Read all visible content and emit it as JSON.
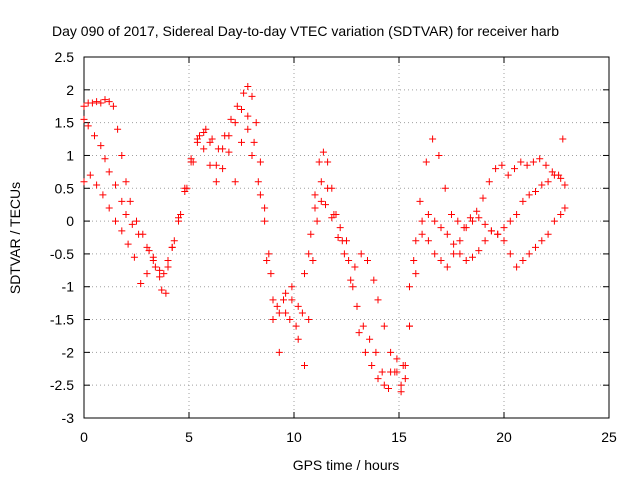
{
  "chart_data": {
    "type": "scatter",
    "title": "Day 090 of 2017, Sidereal Day-to-day VTEC variation (SDTVAR) for receiver harb",
    "xlabel": "GPS time / hours",
    "ylabel": "SDTVAR / TECUs",
    "xlim": [
      0,
      25
    ],
    "ylim": [
      -3,
      2.5
    ],
    "xticks": [
      "0",
      "5",
      "10",
      "15",
      "20",
      "25"
    ],
    "yticks": [
      "-3",
      "-2.5",
      "-2",
      "-1.5",
      "-1",
      "-0.5",
      "0",
      "0.5",
      "1",
      "1.5",
      "2",
      "2.5"
    ],
    "grid": true,
    "marker": "+",
    "color": "#ff0000",
    "series": [
      {
        "x": [
          0.0,
          0.2,
          0.5,
          0.8,
          1.0,
          1.2,
          1.5,
          1.8,
          2.0,
          2.3,
          2.6,
          3.0,
          3.3,
          3.6,
          3.8,
          4.0,
          4.3,
          4.6,
          4.9,
          5.2,
          5.5,
          5.8,
          6.1,
          6.4,
          6.7,
          7.0,
          7.3,
          7.6,
          7.8,
          8.0,
          8.2,
          8.4,
          8.6,
          8.8,
          9.0,
          9.3,
          9.6,
          9.9,
          10.2,
          10.5,
          10.8,
          11.0,
          11.2,
          11.4,
          11.6,
          11.8,
          12.0,
          12.3,
          12.6,
          12.9,
          13.2,
          13.5,
          13.8,
          14.0,
          14.3,
          14.6,
          14.9,
          15.1,
          15.3,
          15.5,
          15.7,
          16.0,
          16.3,
          16.6,
          16.9,
          17.2,
          17.5,
          17.8,
          18.1,
          18.4,
          18.7,
          19.0,
          19.3,
          19.6,
          19.9,
          20.2,
          20.5,
          20.8,
          21.1,
          21.4,
          21.7,
          22.0,
          22.3,
          22.6,
          22.8
        ],
        "y": [
          1.55,
          1.45,
          1.3,
          1.15,
          0.95,
          0.75,
          0.55,
          0.3,
          0.1,
          -0.05,
          -0.2,
          -0.4,
          -0.6,
          -0.75,
          -0.8,
          -0.6,
          -0.3,
          0.1,
          0.5,
          0.9,
          1.3,
          1.4,
          1.25,
          1.1,
          1.3,
          1.55,
          1.75,
          1.95,
          2.05,
          1.9,
          1.5,
          0.9,
          0.2,
          -0.5,
          -1.2,
          -1.4,
          -1.1,
          -1.2,
          -1.3,
          -0.8,
          -0.2,
          0.4,
          0.9,
          1.05,
          0.9,
          0.5,
          0.1,
          -0.3,
          -0.6,
          -0.7,
          -0.5,
          -0.6,
          -0.9,
          -1.2,
          -1.6,
          -2.0,
          -2.3,
          -2.5,
          -2.4,
          -1.6,
          -0.6,
          0.3,
          0.9,
          1.25,
          1.0,
          0.5,
          0.1,
          0.0,
          -0.1,
          0.05,
          0.15,
          0.35,
          0.6,
          0.8,
          0.85,
          0.7,
          0.8,
          0.9,
          0.85,
          0.9,
          0.95,
          0.85,
          0.75,
          0.7,
          1.25
        ]
      },
      {
        "x": [
          0.0,
          0.2,
          0.4,
          0.6,
          0.8,
          1.0,
          1.2,
          1.4,
          1.6,
          1.8,
          2.0,
          2.2,
          2.5,
          2.8,
          3.1,
          3.4,
          3.7,
          4.0,
          4.2,
          4.5,
          4.8,
          5.1,
          5.4,
          5.7,
          6.0,
          6.3,
          6.6,
          6.9,
          7.2,
          7.5,
          7.8,
          8.1,
          8.4,
          8.7,
          9.0,
          9.3,
          9.6,
          9.9,
          10.2,
          10.5,
          10.7,
          10.9,
          11.1,
          11.3,
          11.5,
          11.8,
          12.1,
          12.4,
          12.7,
          13.0,
          13.3,
          13.6,
          13.9,
          14.2,
          14.5,
          14.8,
          15.1,
          15.3,
          15.5,
          15.8,
          16.1,
          16.4,
          16.7,
          17.0,
          17.3,
          17.6,
          17.9,
          18.2,
          18.5,
          18.8,
          19.1,
          19.4,
          19.7,
          20.0,
          20.3,
          20.6,
          20.9,
          21.2,
          21.5,
          21.8,
          22.1,
          22.4,
          22.7,
          22.9
        ],
        "y": [
          1.75,
          1.8,
          1.8,
          1.82,
          1.8,
          1.85,
          1.82,
          1.75,
          1.4,
          1.0,
          0.6,
          0.3,
          0.0,
          -0.2,
          -0.45,
          -0.7,
          -1.05,
          -0.7,
          -0.4,
          0.0,
          0.45,
          0.9,
          1.2,
          1.35,
          1.2,
          0.85,
          1.1,
          1.3,
          1.5,
          1.7,
          1.6,
          1.2,
          0.4,
          -0.6,
          -1.5,
          -2.0,
          -1.4,
          -1.0,
          -1.8,
          -2.2,
          -1.5,
          -0.6,
          0.0,
          0.3,
          0.25,
          0.05,
          -0.25,
          -0.5,
          -0.9,
          -1.3,
          -1.6,
          -1.8,
          -2.0,
          -2.3,
          -2.55,
          -2.3,
          -2.6,
          -2.2,
          -1.0,
          -0.3,
          0.0,
          0.1,
          0.0,
          -0.1,
          -0.2,
          -0.35,
          -0.5,
          -0.6,
          -0.55,
          -0.45,
          -0.3,
          -0.15,
          -0.2,
          -0.3,
          -0.5,
          -0.7,
          -0.6,
          -0.5,
          -0.4,
          -0.3,
          -0.2,
          0.0,
          0.1,
          0.2
        ]
      },
      {
        "x": [
          0.0,
          0.3,
          0.6,
          0.9,
          1.2,
          1.5,
          1.8,
          2.1,
          2.4,
          2.7,
          3.0,
          3.3,
          3.6,
          3.9,
          4.2,
          4.5,
          4.8,
          5.1,
          5.4,
          5.7,
          6.0,
          6.3,
          6.6,
          6.9,
          7.2,
          7.5,
          7.8,
          8.0,
          8.3,
          8.6,
          8.9,
          9.2,
          9.5,
          9.8,
          10.1,
          10.4,
          10.7,
          11.0,
          11.3,
          11.6,
          11.9,
          12.2,
          12.5,
          12.8,
          13.1,
          13.4,
          13.7,
          14.0,
          14.3,
          14.6,
          14.9,
          15.2,
          15.5,
          15.8,
          16.1,
          16.4,
          16.7,
          17.0,
          17.3,
          17.6,
          17.9,
          18.2,
          18.5,
          18.8,
          19.1,
          19.4,
          19.7,
          20.0,
          20.3,
          20.6,
          20.9,
          21.2,
          21.5,
          21.8,
          22.1,
          22.4,
          22.7,
          22.9
        ],
        "y": [
          0.6,
          0.7,
          0.55,
          0.4,
          0.2,
          0.0,
          -0.15,
          -0.35,
          -0.55,
          -0.95,
          -0.8,
          -0.55,
          -0.85,
          -1.1,
          -0.4,
          0.05,
          0.5,
          0.95,
          1.25,
          1.1,
          0.85,
          0.6,
          0.8,
          1.05,
          0.6,
          1.2,
          1.4,
          1.0,
          0.6,
          0.0,
          -0.8,
          -1.3,
          -1.2,
          -1.5,
          -1.6,
          -1.4,
          -0.5,
          0.2,
          0.6,
          0.5,
          0.1,
          -0.1,
          -0.3,
          -1.0,
          -1.7,
          -2.0,
          -2.2,
          -2.4,
          -2.5,
          -2.3,
          -2.1,
          -2.2,
          -1.6,
          -0.8,
          -0.2,
          -0.3,
          -0.5,
          -0.6,
          -0.7,
          -0.5,
          -0.3,
          -0.1,
          0.0,
          0.05,
          -0.05,
          -0.15,
          -0.2,
          -0.1,
          0.0,
          0.1,
          0.3,
          0.4,
          0.45,
          0.55,
          0.6,
          0.7,
          0.65,
          0.55
        ]
      }
    ]
  }
}
